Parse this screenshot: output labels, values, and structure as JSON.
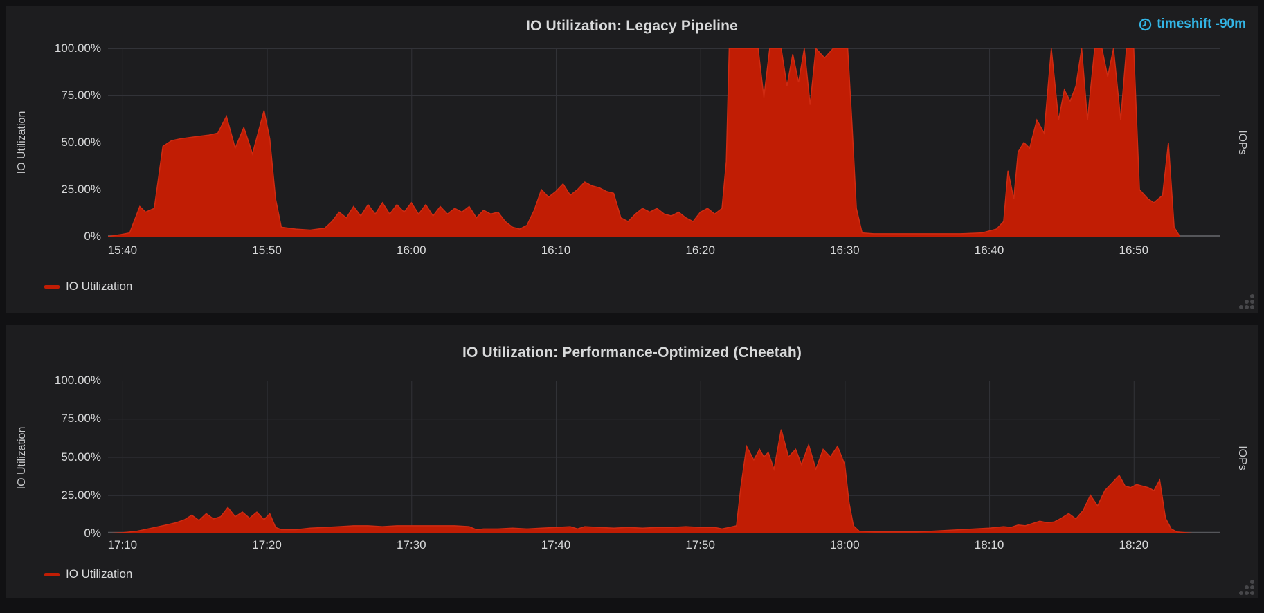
{
  "colors": {
    "series_fill": "#c11d04",
    "series_stroke": "#cf2b12",
    "timeshift_accent": "#33b5e5",
    "grid": "#323338",
    "axis_baseline": "#55565a",
    "text": "#d8d9da",
    "panel_bg": "#1d1d1f",
    "page_bg": "#111113",
    "resize_dots": "#47474a"
  },
  "icons": {
    "timeshift": "clock-icon",
    "panel_corner": "resize-grip-icon"
  },
  "panels": [
    {
      "title": "IO Utilization: Legacy Pipeline",
      "timeshift": "timeshift -90m",
      "left_axis_label": "IO Utilization",
      "right_axis_label": "IOPs",
      "legend": [
        {
          "label": "IO Utilization",
          "color": "#c11d04"
        }
      ]
    },
    {
      "title": "IO Utilization: Performance-Optimized (Cheetah)",
      "timeshift": "",
      "left_axis_label": "IO Utilization",
      "right_axis_label": "IOPs",
      "legend": [
        {
          "label": "IO Utilization",
          "color": "#c11d04"
        }
      ]
    }
  ],
  "chart_data": [
    {
      "type": "area",
      "title": "IO Utilization: Legacy Pipeline",
      "ylabel": "IO Utilization",
      "ylabel_right": "IOPs",
      "ylim": [
        0,
        100
      ],
      "xlim": [
        0,
        77
      ],
      "grid": true,
      "legend_position": "bottom-left",
      "yticks": [
        {
          "value": 0,
          "label": "0%"
        },
        {
          "value": 25,
          "label": "25.00%"
        },
        {
          "value": 50,
          "label": "50.00%"
        },
        {
          "value": 75,
          "label": "75.00%"
        },
        {
          "value": 100,
          "label": "100.00%"
        }
      ],
      "xticks": [
        {
          "t": 1,
          "label": "15:40"
        },
        {
          "t": 11,
          "label": "15:50"
        },
        {
          "t": 21,
          "label": "16:00"
        },
        {
          "t": 31,
          "label": "16:10"
        },
        {
          "t": 41,
          "label": "16:20"
        },
        {
          "t": 51,
          "label": "16:30"
        },
        {
          "t": 61,
          "label": "16:40"
        },
        {
          "t": 71,
          "label": "16:50"
        }
      ],
      "series": [
        {
          "name": "IO Utilization",
          "unit": "percent",
          "points": [
            [
              0,
              0
            ],
            [
              0.8,
              1
            ],
            [
              1.5,
              2
            ],
            [
              2.2,
              16
            ],
            [
              2.6,
              13
            ],
            [
              3.2,
              15
            ],
            [
              3.8,
              48
            ],
            [
              4.4,
              51
            ],
            [
              5,
              52
            ],
            [
              6,
              53
            ],
            [
              7,
              54
            ],
            [
              7.6,
              55
            ],
            [
              8.2,
              64
            ],
            [
              8.8,
              47
            ],
            [
              9.4,
              58
            ],
            [
              10,
              44
            ],
            [
              10.8,
              67
            ],
            [
              11.2,
              52
            ],
            [
              11.6,
              20
            ],
            [
              12,
              5
            ],
            [
              13,
              4
            ],
            [
              14,
              3.5
            ],
            [
              15,
              4.5
            ],
            [
              15.5,
              8
            ],
            [
              16,
              13
            ],
            [
              16.5,
              10
            ],
            [
              17,
              16
            ],
            [
              17.5,
              11
            ],
            [
              18,
              17
            ],
            [
              18.5,
              12
            ],
            [
              19,
              18
            ],
            [
              19.5,
              12
            ],
            [
              20,
              17
            ],
            [
              20.5,
              13
            ],
            [
              21,
              18
            ],
            [
              21.5,
              12
            ],
            [
              22,
              17
            ],
            [
              22.5,
              11
            ],
            [
              23,
              16
            ],
            [
              23.5,
              12
            ],
            [
              24,
              15
            ],
            [
              24.5,
              13
            ],
            [
              25,
              16
            ],
            [
              25.5,
              10
            ],
            [
              26,
              14
            ],
            [
              26.5,
              12
            ],
            [
              27,
              13
            ],
            [
              27.5,
              8
            ],
            [
              28,
              5
            ],
            [
              28.5,
              4
            ],
            [
              29,
              6
            ],
            [
              29.5,
              14
            ],
            [
              30,
              25
            ],
            [
              30.5,
              21
            ],
            [
              31,
              24
            ],
            [
              31.5,
              28
            ],
            [
              32,
              22
            ],
            [
              32.5,
              25
            ],
            [
              33,
              29
            ],
            [
              33.5,
              27
            ],
            [
              34,
              26
            ],
            [
              34.5,
              24
            ],
            [
              35,
              23
            ],
            [
              35.5,
              10
            ],
            [
              36,
              8
            ],
            [
              36.5,
              12
            ],
            [
              37,
              15
            ],
            [
              37.5,
              13
            ],
            [
              38,
              15
            ],
            [
              38.5,
              12
            ],
            [
              39,
              11
            ],
            [
              39.5,
              13
            ],
            [
              40,
              10
            ],
            [
              40.5,
              8
            ],
            [
              41,
              13
            ],
            [
              41.5,
              15
            ],
            [
              42,
              12
            ],
            [
              42.5,
              15
            ],
            [
              42.8,
              40
            ],
            [
              43,
              100
            ],
            [
              44,
              100
            ],
            [
              45,
              100
            ],
            [
              45.4,
              74
            ],
            [
              45.8,
              100
            ],
            [
              46.6,
              100
            ],
            [
              47,
              80
            ],
            [
              47.4,
              97
            ],
            [
              47.8,
              82
            ],
            [
              48.2,
              100
            ],
            [
              48.6,
              70
            ],
            [
              49,
              100
            ],
            [
              49.6,
              95
            ],
            [
              50.2,
              100
            ],
            [
              50.8,
              100
            ],
            [
              51.2,
              100
            ],
            [
              51.5,
              60
            ],
            [
              51.8,
              15
            ],
            [
              52.2,
              2
            ],
            [
              53,
              1.5
            ],
            [
              55,
              1.5
            ],
            [
              57,
              1.5
            ],
            [
              59,
              1.5
            ],
            [
              60.5,
              2
            ],
            [
              61.5,
              4
            ],
            [
              62,
              8
            ],
            [
              62.3,
              35
            ],
            [
              62.7,
              20
            ],
            [
              63,
              45
            ],
            [
              63.4,
              50
            ],
            [
              63.8,
              47
            ],
            [
              64.3,
              62
            ],
            [
              64.8,
              55
            ],
            [
              65.3,
              100
            ],
            [
              65.8,
              62
            ],
            [
              66.2,
              78
            ],
            [
              66.6,
              72
            ],
            [
              67,
              80
            ],
            [
              67.4,
              100
            ],
            [
              67.8,
              62
            ],
            [
              68.3,
              100
            ],
            [
              68.8,
              100
            ],
            [
              69.2,
              85
            ],
            [
              69.6,
              100
            ],
            [
              70.1,
              62
            ],
            [
              70.5,
              100
            ],
            [
              71,
              100
            ],
            [
              71.4,
              25
            ],
            [
              72,
              20
            ],
            [
              72.4,
              18
            ],
            [
              73,
              22
            ],
            [
              73.4,
              50
            ],
            [
              73.8,
              5
            ],
            [
              74.2,
              0
            ]
          ]
        }
      ]
    },
    {
      "type": "area",
      "title": "IO Utilization: Performance-Optimized (Cheetah)",
      "ylabel": "IO Utilization",
      "ylabel_right": "IOPs",
      "ylim": [
        0,
        100
      ],
      "xlim": [
        0,
        77
      ],
      "grid": true,
      "legend_position": "bottom-left",
      "yticks": [
        {
          "value": 0,
          "label": "0%"
        },
        {
          "value": 25,
          "label": "25.00%"
        },
        {
          "value": 50,
          "label": "50.00%"
        },
        {
          "value": 75,
          "label": "75.00%"
        },
        {
          "value": 100,
          "label": "100.00%"
        }
      ],
      "xticks": [
        {
          "t": 1,
          "label": "17:10"
        },
        {
          "t": 11,
          "label": "17:20"
        },
        {
          "t": 21,
          "label": "17:30"
        },
        {
          "t": 31,
          "label": "17:40"
        },
        {
          "t": 41,
          "label": "17:50"
        },
        {
          "t": 51,
          "label": "18:00"
        },
        {
          "t": 61,
          "label": "18:10"
        },
        {
          "t": 71,
          "label": "18:20"
        }
      ],
      "series": [
        {
          "name": "IO Utilization",
          "unit": "percent",
          "points": [
            [
              0,
              0
            ],
            [
              1,
              0.5
            ],
            [
              2,
              1.5
            ],
            [
              3,
              3.5
            ],
            [
              4,
              5.5
            ],
            [
              4.7,
              7
            ],
            [
              5.3,
              9
            ],
            [
              5.8,
              12
            ],
            [
              6.3,
              8.5
            ],
            [
              6.8,
              13
            ],
            [
              7.3,
              9.5
            ],
            [
              7.8,
              11
            ],
            [
              8.3,
              17
            ],
            [
              8.8,
              11
            ],
            [
              9.3,
              14
            ],
            [
              9.8,
              10
            ],
            [
              10.3,
              14
            ],
            [
              10.8,
              9
            ],
            [
              11.2,
              13
            ],
            [
              11.6,
              4
            ],
            [
              12,
              2.5
            ],
            [
              13,
              2.5
            ],
            [
              14,
              3.5
            ],
            [
              15,
              4
            ],
            [
              16,
              4.5
            ],
            [
              17,
              5
            ],
            [
              18,
              5
            ],
            [
              19,
              4.5
            ],
            [
              20,
              5
            ],
            [
              21,
              5
            ],
            [
              22,
              5
            ],
            [
              23,
              5
            ],
            [
              24,
              5
            ],
            [
              25,
              4.5
            ],
            [
              25.5,
              2.5
            ],
            [
              26,
              3
            ],
            [
              27,
              3
            ],
            [
              28,
              3.5
            ],
            [
              29,
              3
            ],
            [
              30,
              3.5
            ],
            [
              31,
              4
            ],
            [
              32,
              4.5
            ],
            [
              32.5,
              3
            ],
            [
              33,
              4.5
            ],
            [
              34,
              4
            ],
            [
              35,
              3.5
            ],
            [
              36,
              4
            ],
            [
              37,
              3.5
            ],
            [
              38,
              4
            ],
            [
              39,
              4
            ],
            [
              40,
              4.5
            ],
            [
              41,
              4
            ],
            [
              42,
              4
            ],
            [
              42.5,
              3
            ],
            [
              43,
              4
            ],
            [
              43.5,
              5
            ],
            [
              43.8,
              30
            ],
            [
              44.2,
              57
            ],
            [
              44.7,
              48
            ],
            [
              45.1,
              55
            ],
            [
              45.4,
              50
            ],
            [
              45.7,
              53
            ],
            [
              46.1,
              42
            ],
            [
              46.6,
              68
            ],
            [
              47.1,
              50
            ],
            [
              47.6,
              55
            ],
            [
              48,
              45
            ],
            [
              48.5,
              58
            ],
            [
              49,
              42
            ],
            [
              49.5,
              55
            ],
            [
              50,
              50
            ],
            [
              50.5,
              57
            ],
            [
              51,
              45
            ],
            [
              51.3,
              20
            ],
            [
              51.6,
              5
            ],
            [
              52,
              1.5
            ],
            [
              53,
              1
            ],
            [
              54,
              1
            ],
            [
              55,
              1
            ],
            [
              56,
              1
            ],
            [
              57,
              1.5
            ],
            [
              58,
              2
            ],
            [
              59,
              2.5
            ],
            [
              60,
              3
            ],
            [
              61,
              3.5
            ],
            [
              62,
              4.5
            ],
            [
              62.5,
              4
            ],
            [
              63,
              5.5
            ],
            [
              63.5,
              5
            ],
            [
              64,
              6.5
            ],
            [
              64.5,
              8
            ],
            [
              65,
              7
            ],
            [
              65.5,
              7.5
            ],
            [
              66,
              10
            ],
            [
              66.5,
              13
            ],
            [
              67,
              9.5
            ],
            [
              67.5,
              15
            ],
            [
              68,
              25
            ],
            [
              68.5,
              18
            ],
            [
              69,
              28
            ],
            [
              69.5,
              33
            ],
            [
              70,
              38
            ],
            [
              70.4,
              31
            ],
            [
              70.8,
              30
            ],
            [
              71.2,
              32
            ],
            [
              71.6,
              31
            ],
            [
              72,
              30
            ],
            [
              72.4,
              28
            ],
            [
              72.8,
              35
            ],
            [
              73.2,
              10
            ],
            [
              73.6,
              3
            ],
            [
              74,
              1
            ],
            [
              74.6,
              0.5
            ],
            [
              75.2,
              0
            ]
          ]
        }
      ]
    }
  ]
}
